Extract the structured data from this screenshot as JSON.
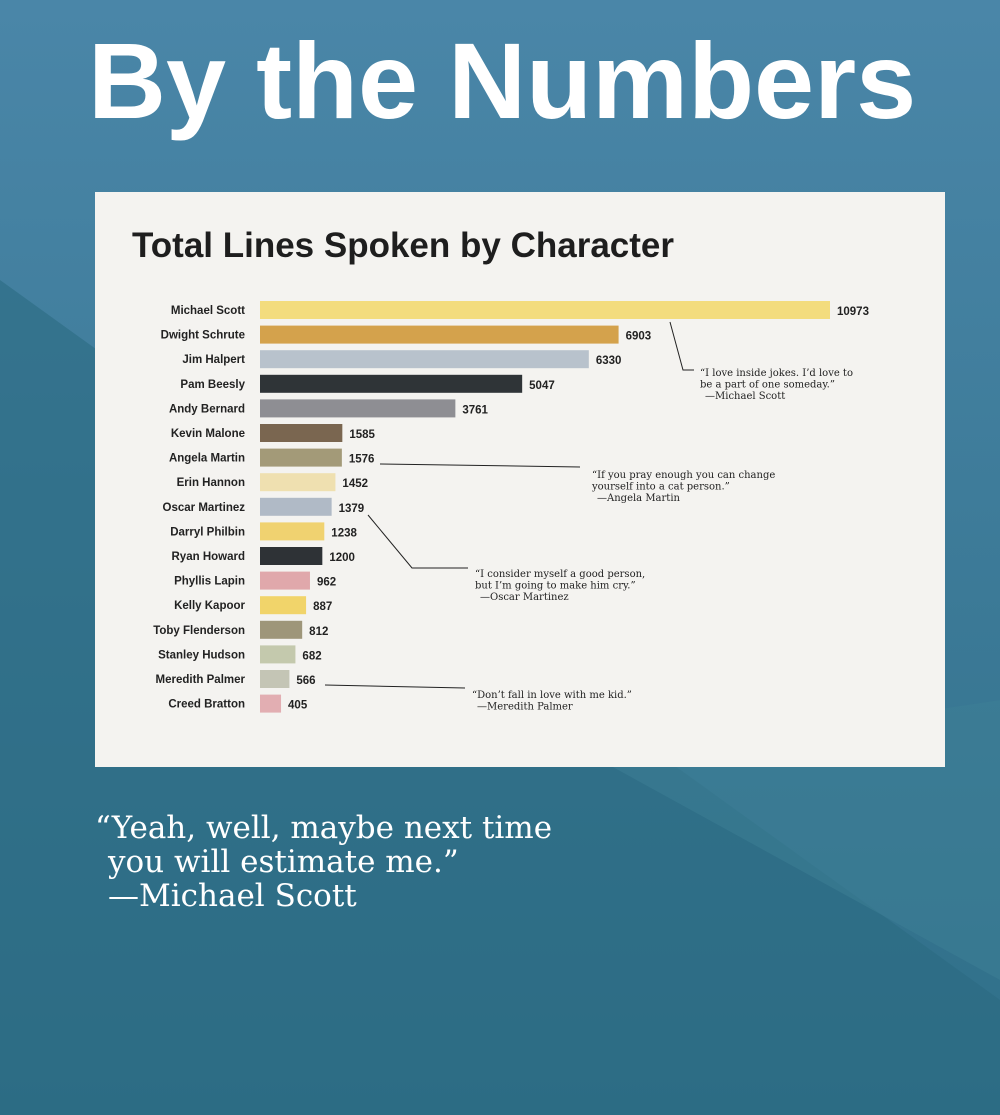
{
  "header": {
    "title": "By the Numbers"
  },
  "chart_data": {
    "type": "bar",
    "orientation": "horizontal",
    "title": "Total Lines Spoken by Character",
    "categories": [
      "Michael Scott",
      "Dwight Schrute",
      "Jim Halpert",
      "Pam Beesly",
      "Andy Bernard",
      "Kevin Malone",
      "Angela Martin",
      "Erin Hannon",
      "Oscar Martinez",
      "Darryl Philbin",
      "Ryan Howard",
      "Phyllis Lapin",
      "Kelly Kapoor",
      "Toby Flenderson",
      "Stanley Hudson",
      "Meredith Palmer",
      "Creed Bratton"
    ],
    "values": [
      10973,
      6903,
      6330,
      5047,
      3761,
      1585,
      1576,
      1452,
      1379,
      1238,
      1200,
      962,
      887,
      812,
      682,
      566,
      405
    ],
    "colors": [
      "#f3dc7e",
      "#d4a24c",
      "#b8c2cc",
      "#2f3437",
      "#8e8e93",
      "#7a6650",
      "#a39a78",
      "#efe0b0",
      "#b0bac6",
      "#f0d270",
      "#2e3236",
      "#e0a8ab",
      "#f1d46a",
      "#9e967a",
      "#c4c9ad",
      "#c4c5b5",
      "#e2aeb2"
    ],
    "annotations": [
      {
        "lines": [
          "“I love inside jokes. I’d love to",
          "be a part of one someday.”",
          "—Michael  Scott"
        ]
      },
      {
        "lines": [
          "“If you pray enough you can change",
          "yourself into a cat person.”",
          "—Angela Martin"
        ]
      },
      {
        "lines": [
          "“I consider myself a good person,",
          "but I’m going to make him cry.”",
          "—Oscar Martinez"
        ]
      },
      {
        "lines": [
          "“Don’t fall in love with me kid.”",
          "—Meredith Palmer"
        ]
      }
    ]
  },
  "quote": {
    "lines": [
      "“Yeah, well, maybe next time",
      "you will estimate me.”",
      "—Michael Scott"
    ]
  }
}
